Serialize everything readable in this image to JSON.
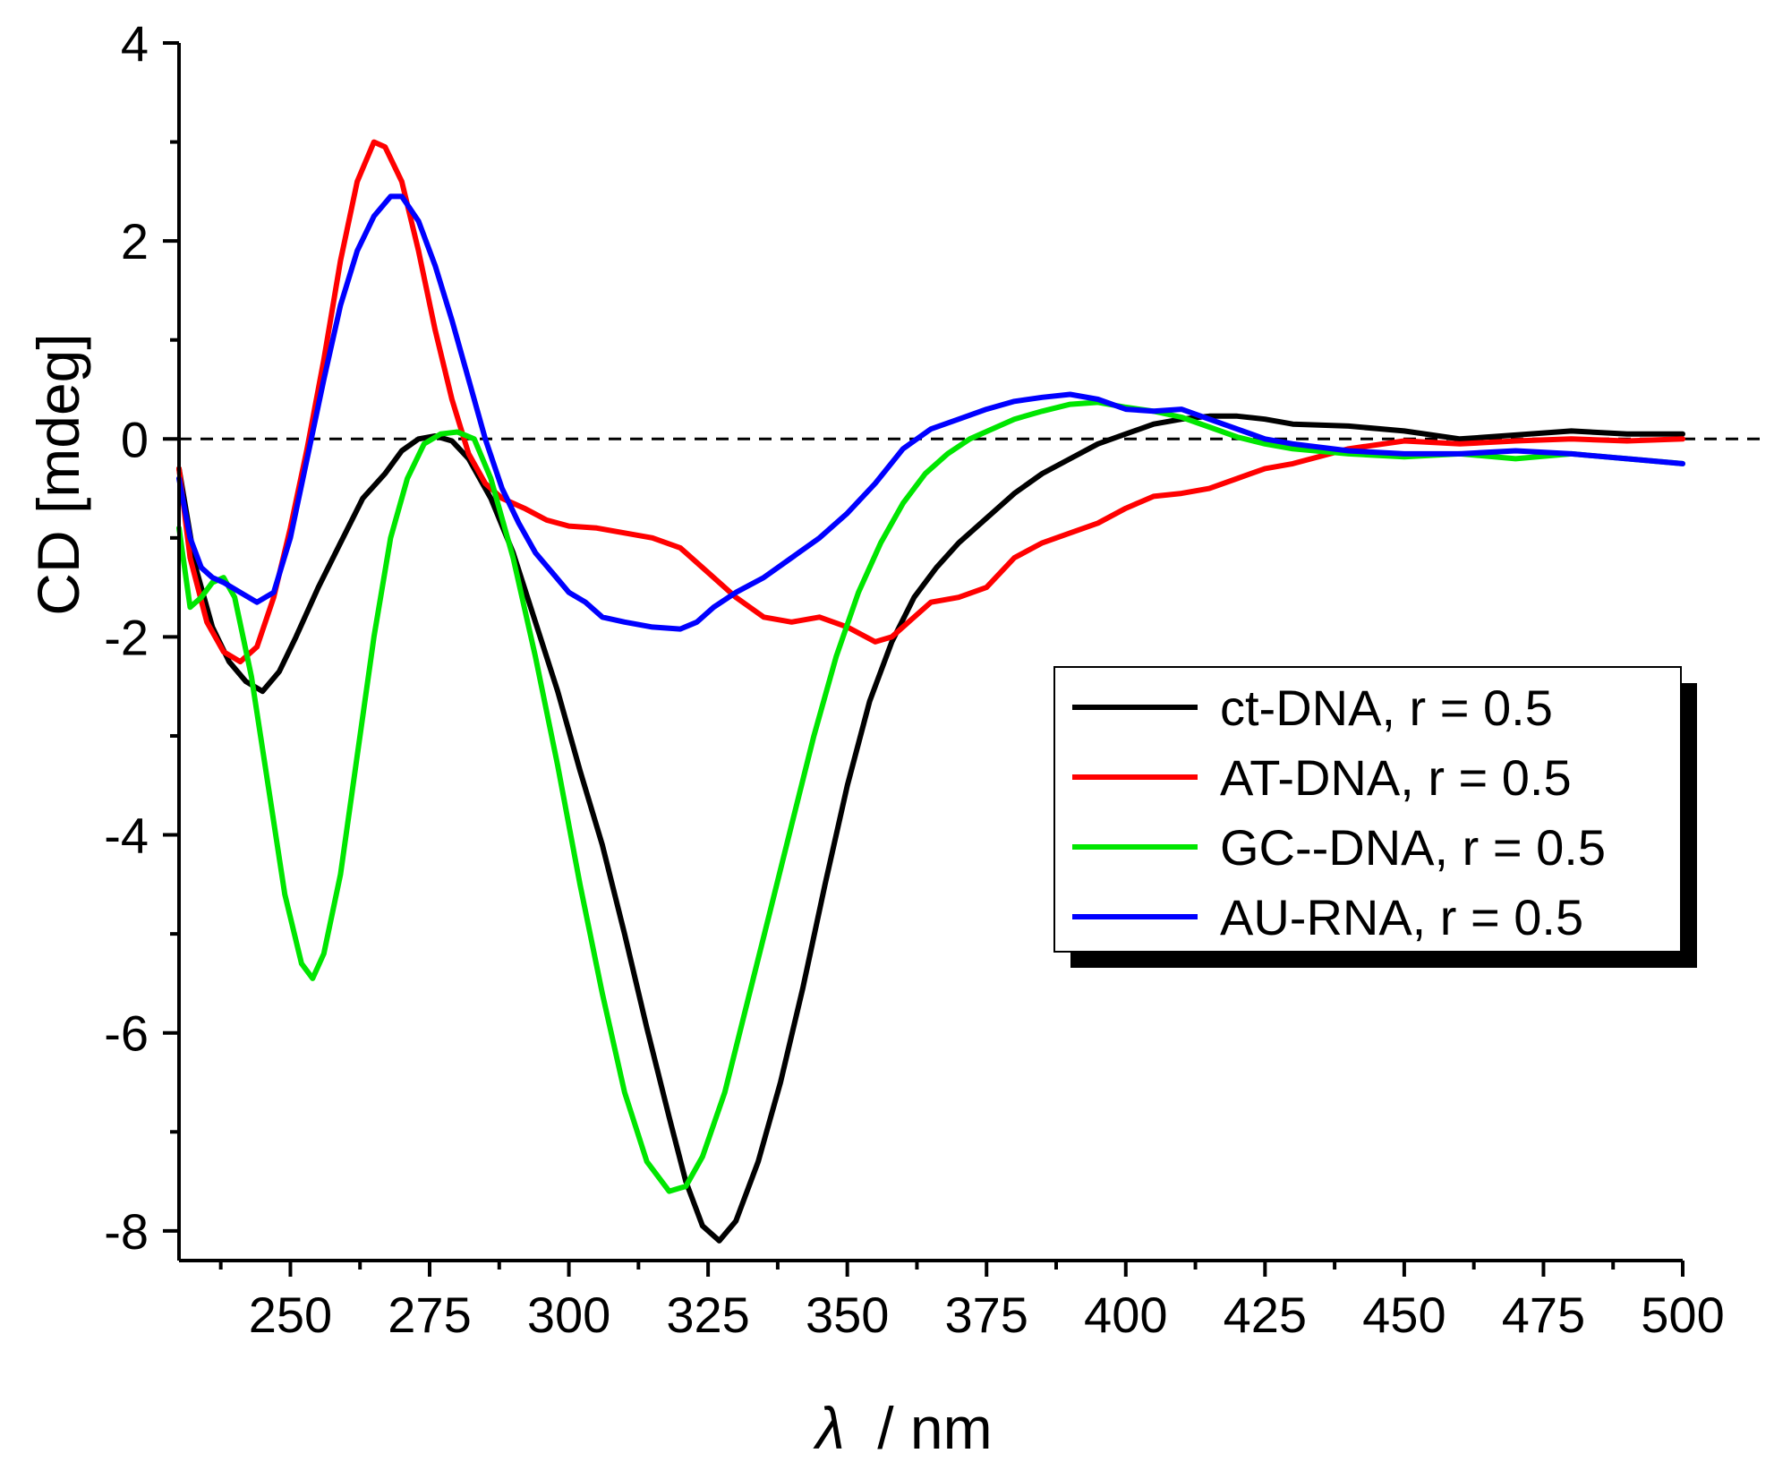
{
  "chart_data": {
    "type": "line",
    "title": "",
    "xlabel_symbol": "λ",
    "xlabel_unit": "/ nm",
    "ylabel": "CD [mdeg]",
    "xlim": [
      230,
      500
    ],
    "ylim": [
      -8.3,
      4
    ],
    "x_ticks": [
      250,
      275,
      300,
      325,
      350,
      375,
      400,
      425,
      450,
      475,
      500
    ],
    "y_ticks": [
      4,
      2,
      0,
      -2,
      -4,
      -6,
      -8
    ],
    "y_tick_labels": [
      "4",
      "2",
      "0",
      "-2",
      "-4",
      "-6",
      "-8"
    ],
    "reference_line": {
      "y": 0,
      "style": "dashed"
    },
    "legend_position": "right-middle",
    "series": [
      {
        "name": "ct-DNA, r = 0.5",
        "color": "#000000",
        "points": [
          [
            230,
            -0.3
          ],
          [
            233,
            -1.3
          ],
          [
            236,
            -1.9
          ],
          [
            239,
            -2.25
          ],
          [
            242,
            -2.45
          ],
          [
            245,
            -2.55
          ],
          [
            248,
            -2.35
          ],
          [
            251,
            -2.0
          ],
          [
            255,
            -1.5
          ],
          [
            259,
            -1.05
          ],
          [
            263,
            -0.6
          ],
          [
            267,
            -0.35
          ],
          [
            270,
            -0.12
          ],
          [
            273,
            0.0
          ],
          [
            276,
            0.03
          ],
          [
            279,
            -0.02
          ],
          [
            282,
            -0.2
          ],
          [
            286,
            -0.6
          ],
          [
            290,
            -1.15
          ],
          [
            294,
            -1.85
          ],
          [
            298,
            -2.55
          ],
          [
            302,
            -3.35
          ],
          [
            306,
            -4.1
          ],
          [
            310,
            -5.0
          ],
          [
            314,
            -5.95
          ],
          [
            318,
            -6.85
          ],
          [
            321,
            -7.5
          ],
          [
            324,
            -7.95
          ],
          [
            327,
            -8.1
          ],
          [
            330,
            -7.9
          ],
          [
            334,
            -7.3
          ],
          [
            338,
            -6.5
          ],
          [
            342,
            -5.55
          ],
          [
            346,
            -4.5
          ],
          [
            350,
            -3.5
          ],
          [
            354,
            -2.65
          ],
          [
            358,
            -2.05
          ],
          [
            362,
            -1.6
          ],
          [
            366,
            -1.3
          ],
          [
            370,
            -1.05
          ],
          [
            375,
            -0.8
          ],
          [
            380,
            -0.55
          ],
          [
            385,
            -0.35
          ],
          [
            390,
            -0.2
          ],
          [
            395,
            -0.05
          ],
          [
            400,
            0.05
          ],
          [
            405,
            0.15
          ],
          [
            410,
            0.2
          ],
          [
            415,
            0.23
          ],
          [
            420,
            0.23
          ],
          [
            425,
            0.2
          ],
          [
            430,
            0.15
          ],
          [
            440,
            0.13
          ],
          [
            450,
            0.08
          ],
          [
            460,
            0.0
          ],
          [
            470,
            0.04
          ],
          [
            480,
            0.08
          ],
          [
            490,
            0.05
          ],
          [
            500,
            0.05
          ]
        ]
      },
      {
        "name": "AT-DNA, r = 0.5",
        "color": "#ff0000",
        "points": [
          [
            230,
            -0.3
          ],
          [
            232,
            -1.2
          ],
          [
            235,
            -1.85
          ],
          [
            238,
            -2.15
          ],
          [
            241,
            -2.25
          ],
          [
            244,
            -2.1
          ],
          [
            247,
            -1.6
          ],
          [
            250,
            -0.9
          ],
          [
            253,
            -0.1
          ],
          [
            256,
            0.8
          ],
          [
            259,
            1.8
          ],
          [
            262,
            2.6
          ],
          [
            265,
            3.0
          ],
          [
            267,
            2.95
          ],
          [
            270,
            2.6
          ],
          [
            273,
            1.9
          ],
          [
            276,
            1.1
          ],
          [
            279,
            0.4
          ],
          [
            282,
            -0.15
          ],
          [
            285,
            -0.45
          ],
          [
            288,
            -0.6
          ],
          [
            292,
            -0.7
          ],
          [
            296,
            -0.82
          ],
          [
            300,
            -0.88
          ],
          [
            305,
            -0.9
          ],
          [
            310,
            -0.95
          ],
          [
            315,
            -1.0
          ],
          [
            320,
            -1.1
          ],
          [
            325,
            -1.35
          ],
          [
            330,
            -1.6
          ],
          [
            335,
            -1.8
          ],
          [
            340,
            -1.85
          ],
          [
            345,
            -1.8
          ],
          [
            350,
            -1.9
          ],
          [
            355,
            -2.05
          ],
          [
            358,
            -2.0
          ],
          [
            361,
            -1.85
          ],
          [
            365,
            -1.65
          ],
          [
            370,
            -1.6
          ],
          [
            375,
            -1.5
          ],
          [
            380,
            -1.2
          ],
          [
            385,
            -1.05
          ],
          [
            390,
            -0.95
          ],
          [
            395,
            -0.85
          ],
          [
            400,
            -0.7
          ],
          [
            405,
            -0.58
          ],
          [
            410,
            -0.55
          ],
          [
            415,
            -0.5
          ],
          [
            420,
            -0.4
          ],
          [
            425,
            -0.3
          ],
          [
            430,
            -0.25
          ],
          [
            440,
            -0.1
          ],
          [
            450,
            -0.02
          ],
          [
            460,
            -0.05
          ],
          [
            470,
            -0.02
          ],
          [
            480,
            0.0
          ],
          [
            490,
            -0.02
          ],
          [
            500,
            0.0
          ]
        ]
      },
      {
        "name": "GC--DNA, r = 0.5",
        "color": "#00e600",
        "points": [
          [
            230,
            -0.9
          ],
          [
            232,
            -1.7
          ],
          [
            234,
            -1.6
          ],
          [
            236,
            -1.45
          ],
          [
            238,
            -1.4
          ],
          [
            240,
            -1.6
          ],
          [
            243,
            -2.4
          ],
          [
            246,
            -3.5
          ],
          [
            249,
            -4.6
          ],
          [
            252,
            -5.3
          ],
          [
            254,
            -5.45
          ],
          [
            256,
            -5.2
          ],
          [
            259,
            -4.4
          ],
          [
            262,
            -3.2
          ],
          [
            265,
            -2.0
          ],
          [
            268,
            -1.0
          ],
          [
            271,
            -0.4
          ],
          [
            274,
            -0.05
          ],
          [
            277,
            0.05
          ],
          [
            280,
            0.07
          ],
          [
            283,
            0.0
          ],
          [
            286,
            -0.4
          ],
          [
            290,
            -1.2
          ],
          [
            294,
            -2.2
          ],
          [
            298,
            -3.3
          ],
          [
            302,
            -4.5
          ],
          [
            306,
            -5.6
          ],
          [
            310,
            -6.6
          ],
          [
            314,
            -7.3
          ],
          [
            318,
            -7.6
          ],
          [
            321,
            -7.55
          ],
          [
            324,
            -7.25
          ],
          [
            328,
            -6.6
          ],
          [
            332,
            -5.7
          ],
          [
            336,
            -4.8
          ],
          [
            340,
            -3.9
          ],
          [
            344,
            -3.0
          ],
          [
            348,
            -2.2
          ],
          [
            352,
            -1.55
          ],
          [
            356,
            -1.05
          ],
          [
            360,
            -0.65
          ],
          [
            364,
            -0.35
          ],
          [
            368,
            -0.15
          ],
          [
            372,
            0.0
          ],
          [
            376,
            0.1
          ],
          [
            380,
            0.2
          ],
          [
            385,
            0.28
          ],
          [
            390,
            0.35
          ],
          [
            395,
            0.37
          ],
          [
            400,
            0.32
          ],
          [
            405,
            0.28
          ],
          [
            410,
            0.22
          ],
          [
            415,
            0.12
          ],
          [
            420,
            0.02
          ],
          [
            425,
            -0.05
          ],
          [
            430,
            -0.1
          ],
          [
            440,
            -0.15
          ],
          [
            450,
            -0.18
          ],
          [
            460,
            -0.15
          ],
          [
            470,
            -0.2
          ],
          [
            480,
            -0.15
          ],
          [
            490,
            -0.2
          ],
          [
            500,
            -0.25
          ]
        ]
      },
      {
        "name": "AU-RNA, r = 0.5",
        "color": "#0000ff",
        "points": [
          [
            230,
            -0.4
          ],
          [
            232,
            -1.0
          ],
          [
            234,
            -1.3
          ],
          [
            236,
            -1.4
          ],
          [
            238,
            -1.45
          ],
          [
            241,
            -1.55
          ],
          [
            244,
            -1.65
          ],
          [
            247,
            -1.55
          ],
          [
            250,
            -1.0
          ],
          [
            253,
            -0.2
          ],
          [
            256,
            0.6
          ],
          [
            259,
            1.35
          ],
          [
            262,
            1.9
          ],
          [
            265,
            2.25
          ],
          [
            268,
            2.45
          ],
          [
            270,
            2.45
          ],
          [
            273,
            2.2
          ],
          [
            276,
            1.75
          ],
          [
            279,
            1.2
          ],
          [
            282,
            0.6
          ],
          [
            285,
            0.0
          ],
          [
            288,
            -0.5
          ],
          [
            291,
            -0.85
          ],
          [
            294,
            -1.15
          ],
          [
            297,
            -1.35
          ],
          [
            300,
            -1.55
          ],
          [
            303,
            -1.65
          ],
          [
            306,
            -1.8
          ],
          [
            310,
            -1.85
          ],
          [
            315,
            -1.9
          ],
          [
            320,
            -1.92
          ],
          [
            323,
            -1.85
          ],
          [
            326,
            -1.7
          ],
          [
            330,
            -1.55
          ],
          [
            335,
            -1.4
          ],
          [
            340,
            -1.2
          ],
          [
            345,
            -1.0
          ],
          [
            350,
            -0.75
          ],
          [
            355,
            -0.45
          ],
          [
            360,
            -0.1
          ],
          [
            365,
            0.1
          ],
          [
            370,
            0.2
          ],
          [
            375,
            0.3
          ],
          [
            380,
            0.38
          ],
          [
            385,
            0.42
          ],
          [
            390,
            0.45
          ],
          [
            395,
            0.4
          ],
          [
            400,
            0.3
          ],
          [
            405,
            0.28
          ],
          [
            410,
            0.3
          ],
          [
            415,
            0.2
          ],
          [
            420,
            0.1
          ],
          [
            425,
            0.0
          ],
          [
            430,
            -0.05
          ],
          [
            440,
            -0.12
          ],
          [
            450,
            -0.15
          ],
          [
            460,
            -0.15
          ],
          [
            470,
            -0.12
          ],
          [
            480,
            -0.15
          ],
          [
            490,
            -0.2
          ],
          [
            500,
            -0.25
          ]
        ]
      }
    ]
  }
}
